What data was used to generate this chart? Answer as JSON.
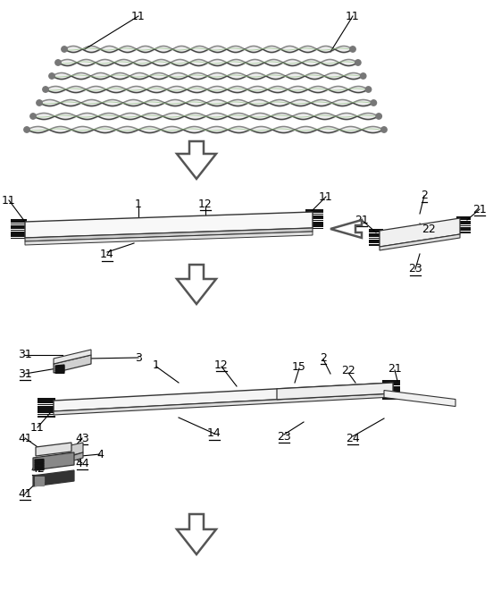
{
  "bg": "#ffffff",
  "lc": "#333333",
  "black": "#111111",
  "figsize": [
    5.52,
    6.8
  ],
  "dpi": 100
}
